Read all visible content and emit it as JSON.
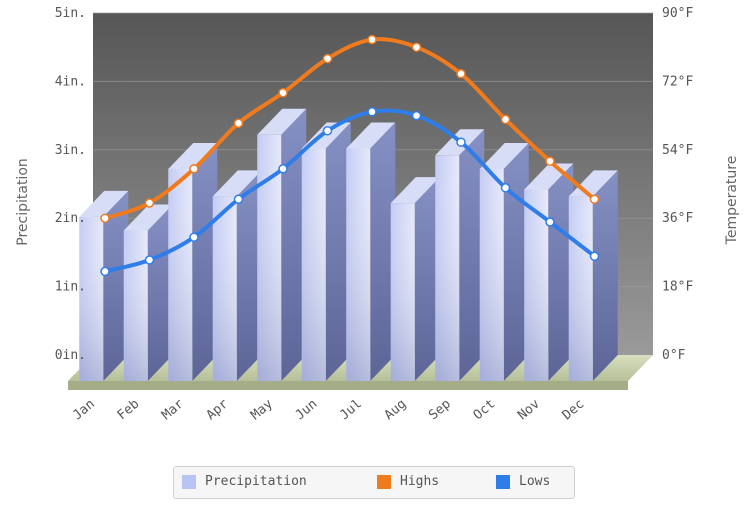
{
  "chart_data": {
    "type": "bar",
    "categories": [
      "Jan",
      "Feb",
      "Mar",
      "Apr",
      "May",
      "Jun",
      "Jul",
      "Aug",
      "Sep",
      "Oct",
      "Nov",
      "Dec"
    ],
    "series": [
      {
        "name": "Precipitation",
        "type": "bar",
        "axis": "left",
        "values": [
          2.4,
          2.2,
          3.1,
          2.7,
          3.6,
          3.4,
          3.4,
          2.6,
          3.3,
          3.1,
          2.8,
          2.7
        ]
      },
      {
        "name": "Highs",
        "type": "line",
        "axis": "right",
        "values": [
          36,
          40,
          49,
          61,
          69,
          78,
          83,
          81,
          74,
          62,
          51,
          41
        ]
      },
      {
        "name": "Lows",
        "type": "line",
        "axis": "right",
        "values": [
          22,
          25,
          31,
          41,
          49,
          59,
          64,
          63,
          56,
          44,
          35,
          26
        ]
      }
    ],
    "ylabel": "Precipitation",
    "y2label": "Temperature",
    "ylim": [
      0,
      5
    ],
    "y2lim": [
      0,
      90
    ],
    "yticks": [
      "0in.",
      "1in.",
      "2in.",
      "3in.",
      "4in.",
      "5in."
    ],
    "y2ticks": [
      "0°F",
      "18°F",
      "36°F",
      "54°F",
      "72°F",
      "90°F"
    ],
    "grid": true,
    "legend_position": "bottom",
    "colors": {
      "precipitation": "#b8c4f2",
      "highs": "#f07a1e",
      "lows": "#2f7de8"
    }
  }
}
